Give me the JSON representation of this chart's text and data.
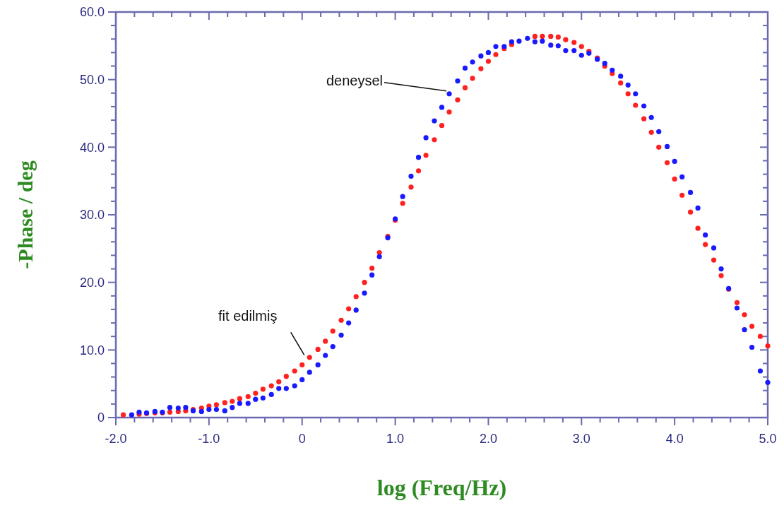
{
  "chart_data": {
    "type": "scatter",
    "xlabel": "log (Freq/Hz)",
    "ylabel": "-Phase / deg",
    "marker": "circle",
    "xlim": [
      -2,
      5
    ],
    "ylim": [
      0,
      60
    ],
    "xticks": [
      {
        "value": -2,
        "label": "-2.0"
      },
      {
        "value": -1.8,
        "label": null
      },
      {
        "value": -1.6,
        "label": null
      },
      {
        "value": -1.4,
        "label": null
      },
      {
        "value": -1.2,
        "label": null
      },
      {
        "value": -1,
        "label": "-1.0"
      },
      {
        "value": -0.8,
        "label": null
      },
      {
        "value": -0.6,
        "label": null
      },
      {
        "value": -0.4,
        "label": null
      },
      {
        "value": -0.2,
        "label": null
      },
      0,
      {
        "value": 0.2,
        "label": null
      },
      {
        "value": 0.4,
        "label": null
      },
      {
        "value": 0.6,
        "label": null
      },
      {
        "value": 0.8,
        "label": null
      },
      {
        "value": 1,
        "label": "1.0"
      },
      {
        "value": 1.2,
        "label": null
      },
      {
        "value": 1.4,
        "label": null
      },
      {
        "value": 1.6,
        "label": null
      },
      {
        "value": 1.8,
        "label": null
      },
      {
        "value": 2,
        "label": "2.0"
      },
      {
        "value": 2.2,
        "label": null
      },
      {
        "value": 2.4,
        "label": null
      },
      {
        "value": 2.6,
        "label": null
      },
      {
        "value": 2.8,
        "label": null
      },
      {
        "value": 3,
        "label": "3.0"
      },
      {
        "value": 3.2,
        "label": null
      },
      {
        "value": 3.4,
        "label": null
      },
      {
        "value": 3.6,
        "label": null
      },
      {
        "value": 3.8,
        "label": null
      },
      {
        "value": 4,
        "label": "4.0"
      },
      {
        "value": 4.2,
        "label": null
      },
      {
        "value": 4.4,
        "label": null
      },
      {
        "value": 4.6,
        "label": null
      },
      {
        "value": 4.8,
        "label": null
      },
      {
        "value": 5,
        "label": "5.0"
      }
    ],
    "yticks": [
      0,
      {
        "value": 2,
        "label": null
      },
      {
        "value": 4,
        "label": null
      },
      {
        "value": 6,
        "label": null
      },
      {
        "value": 8,
        "label": null
      },
      {
        "value": 10,
        "label": "10.0"
      },
      {
        "value": 12,
        "label": null
      },
      {
        "value": 14,
        "label": null
      },
      {
        "value": 16,
        "label": null
      },
      {
        "value": 18,
        "label": null
      },
      {
        "value": 20,
        "label": "20.0"
      },
      {
        "value": 22,
        "label": null
      },
      {
        "value": 24,
        "label": null
      },
      {
        "value": 26,
        "label": null
      },
      {
        "value": 28,
        "label": null
      },
      {
        "value": 30,
        "label": "30.0"
      },
      {
        "value": 32,
        "label": null
      },
      {
        "value": 34,
        "label": null
      },
      {
        "value": 36,
        "label": null
      },
      {
        "value": 38,
        "label": null
      },
      {
        "value": 40,
        "label": "40.0"
      },
      {
        "value": 42,
        "label": null
      },
      {
        "value": 44,
        "label": null
      },
      {
        "value": 46,
        "label": null
      },
      {
        "value": 48,
        "label": null
      },
      {
        "value": 50,
        "label": "50.0"
      },
      {
        "value": 52,
        "label": null
      },
      {
        "value": 54,
        "label": null
      },
      {
        "value": 56,
        "label": null
      },
      {
        "value": 58,
        "label": null
      },
      {
        "value": 60,
        "label": "60.0"
      }
    ],
    "x": [
      -1.92,
      -1.83,
      -1.75,
      -1.67,
      -1.58,
      -1.5,
      -1.42,
      -1.33,
      -1.25,
      -1.17,
      -1.08,
      -1,
      -0.92,
      -0.83,
      -0.75,
      -0.67,
      -0.58,
      -0.5,
      -0.42,
      -0.33,
      -0.25,
      -0.17,
      -0.08,
      0,
      0.08,
      0.17,
      0.25,
      0.33,
      0.42,
      0.5,
      0.58,
      0.67,
      0.75,
      0.83,
      0.92,
      1,
      1.08,
      1.17,
      1.25,
      1.33,
      1.42,
      1.5,
      1.58,
      1.67,
      1.75,
      1.83,
      1.92,
      2,
      2.08,
      2.17,
      2.25,
      2.33,
      2.42,
      2.5,
      2.58,
      2.67,
      2.75,
      2.83,
      2.92,
      3,
      3.08,
      3.17,
      3.25,
      3.33,
      3.42,
      3.5,
      3.58,
      3.67,
      3.75,
      3.83,
      3.92,
      4,
      4.08,
      4.17,
      4.25,
      4.33,
      4.42,
      4.5,
      4.58,
      4.67,
      4.75,
      4.83,
      4.92,
      5
    ],
    "series": [
      {
        "name": "fit edilmiş",
        "color": "#ff2020",
        "values": [
          0.4,
          null,
          0.5,
          0.6,
          0.7,
          0.7,
          0.8,
          0.9,
          1.0,
          1.2,
          1.4,
          1.7,
          1.9,
          2.2,
          2.4,
          2.8,
          3.1,
          3.6,
          4.2,
          4.7,
          5.3,
          6.1,
          6.9,
          7.8,
          8.9,
          10.1,
          11.3,
          12.8,
          14.4,
          16.1,
          17.9,
          20.0,
          22.1,
          24.4,
          26.8,
          29.2,
          31.7,
          34.1,
          36.5,
          38.8,
          41.1,
          43.2,
          45.2,
          47.0,
          48.8,
          50.2,
          51.6,
          52.7,
          53.7,
          54.6,
          55.2,
          null,
          null,
          56.4,
          56.4,
          56.4,
          56.3,
          55.9,
          55.5,
          54.9,
          54.2,
          53.2,
          52.0,
          50.9,
          49.5,
          47.9,
          46.2,
          44.2,
          42.2,
          40.0,
          37.7,
          35.3,
          32.9,
          30.4,
          28.0,
          25.6,
          23.3,
          21.0,
          19.0,
          17.0,
          15.2,
          13.5,
          12.0,
          10.6
        ]
      },
      {
        "name": "deneysel",
        "color": "#1a1aff",
        "values": [
          null,
          0.4,
          0.8,
          0.7,
          0.9,
          0.8,
          1.5,
          1.4,
          1.5,
          1.0,
          0.9,
          1.2,
          1.2,
          1.0,
          1.5,
          2.1,
          2.1,
          2.7,
          2.9,
          3.4,
          4.3,
          4.3,
          4.7,
          5.6,
          6.7,
          7.8,
          9.2,
          10.5,
          12.2,
          14.0,
          15.9,
          18.4,
          21.1,
          23.8,
          26.6,
          29.4,
          32.7,
          35.7,
          38.5,
          41.4,
          43.9,
          45.9,
          47.9,
          49.8,
          51.7,
          52.6,
          53.5,
          54.0,
          54.9,
          54.9,
          55.6,
          55.7,
          56.1,
          55.6,
          55.7,
          55.1,
          55.0,
          54.3,
          54.3,
          53.6,
          53.9,
          53.0,
          52.4,
          51.4,
          50.5,
          49.2,
          47.9,
          46.1,
          44.4,
          42.3,
          40.1,
          37.9,
          35.6,
          33.3,
          31.0,
          27.0,
          25.1,
          22.0,
          19.1,
          16.2,
          13.0,
          10.4,
          6.9,
          5.2
        ]
      }
    ]
  }
}
